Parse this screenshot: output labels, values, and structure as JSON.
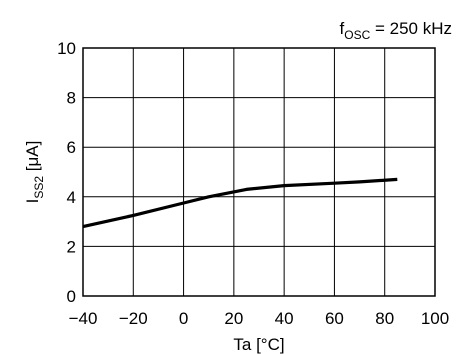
{
  "chart_data": {
    "type": "line",
    "annotation_main": "f",
    "annotation_sub": "OSC",
    "annotation_rest": " = 250 kHz",
    "ylabel_main": "I",
    "ylabel_sub": "SS2",
    "ylabel_rest": " [μA]",
    "xlabel": "Ta [°C]",
    "xlim": [
      -40,
      100
    ],
    "ylim": [
      0,
      10
    ],
    "xticks": [
      -40,
      -20,
      0,
      20,
      40,
      60,
      80,
      100
    ],
    "yticks": [
      0,
      2,
      4,
      6,
      8,
      10
    ],
    "grid": true,
    "series": [
      {
        "x": [
          -40,
          -20,
          0,
          10,
          25,
          40,
          60,
          70,
          85
        ],
        "y": [
          2.8,
          3.25,
          3.75,
          4.0,
          4.3,
          4.45,
          4.55,
          4.6,
          4.7
        ]
      }
    ]
  }
}
